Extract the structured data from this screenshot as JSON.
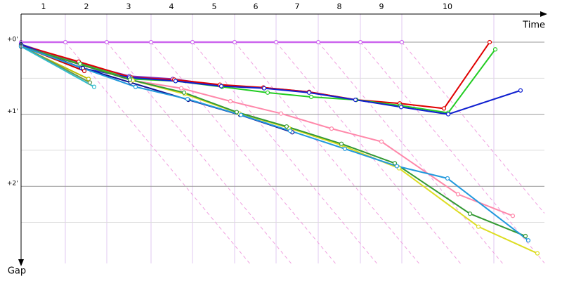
{
  "chart_data": {
    "type": "line",
    "x_label": "Time",
    "y_label": "Gap",
    "xlim": [
      0,
      745
    ],
    "ylim": [
      -0.39,
      3.07
    ],
    "xticks": [
      {
        "value": 32,
        "label": "1"
      },
      {
        "value": 93,
        "label": "2"
      },
      {
        "value": 153,
        "label": "3"
      },
      {
        "value": 214,
        "label": "4"
      },
      {
        "value": 275,
        "label": "5"
      },
      {
        "value": 334,
        "label": "6"
      },
      {
        "value": 393,
        "label": "7"
      },
      {
        "value": 453,
        "label": "8"
      },
      {
        "value": 513,
        "label": "9"
      },
      {
        "value": 607,
        "label": "10"
      }
    ],
    "xgrid": [
      63,
      122,
      185,
      244,
      304,
      363,
      423,
      483,
      542,
      673
    ],
    "yticks": [
      {
        "value": 0,
        "label": "+0'"
      },
      {
        "value": 1,
        "label": "+1'"
      },
      {
        "value": 2,
        "label": "+2'"
      }
    ],
    "ygrid_minor": [
      0.5,
      1.5,
      2.5
    ],
    "series": [
      {
        "color": "#cc66ee",
        "x": [
          0,
          63,
          122,
          185,
          244,
          304,
          363,
          423,
          483,
          542
        ],
        "values": [
          0,
          0,
          0,
          0,
          0,
          0,
          0,
          0,
          0,
          0
        ]
      },
      {
        "color": "#8030c0",
        "x": [
          0,
          83,
          154,
          216,
          283,
          345,
          410,
          476,
          541
        ],
        "values": [
          0.03,
          0.29,
          0.47,
          0.51,
          0.6,
          0.63,
          0.69,
          0.8,
          0.89
        ]
      },
      {
        "color": "#e00000",
        "x": [
          0,
          82,
          157,
          218,
          283,
          345,
          410,
          477,
          539,
          602,
          667
        ],
        "values": [
          0.04,
          0.27,
          0.49,
          0.52,
          0.59,
          0.63,
          0.69,
          0.8,
          0.85,
          0.92,
          0
        ]
      },
      {
        "color": "#22cc22",
        "x": [
          0,
          84,
          157,
          220,
          286,
          351,
          413,
          477,
          540,
          608,
          675
        ],
        "values": [
          0.06,
          0.3,
          0.51,
          0.54,
          0.62,
          0.7,
          0.76,
          0.8,
          0.88,
          0.98,
          0.1
        ]
      },
      {
        "color": "#1020d0",
        "x": [
          0,
          86,
          154,
          220,
          285,
          346,
          410,
          476,
          541,
          608,
          711
        ],
        "values": [
          0.03,
          0.36,
          0.49,
          0.54,
          0.61,
          0.64,
          0.7,
          0.8,
          0.9,
          1.0,
          0.67
        ]
      },
      {
        "color": "#101090",
        "x": [
          0,
          88,
          156,
          238,
          312,
          386
        ],
        "values": [
          0.05,
          0.36,
          0.56,
          0.8,
          1.01,
          1.25
        ]
      },
      {
        "color": "#cc0000",
        "x": [
          0,
          90
        ],
        "values": [
          0.05,
          0.4
        ]
      },
      {
        "color": "#bbbb00",
        "x": [
          0,
          96
        ],
        "values": [
          0.06,
          0.51
        ]
      },
      {
        "color": "#669955",
        "x": [
          0,
          98
        ],
        "values": [
          0.05,
          0.56
        ]
      },
      {
        "color": "#33bbcc",
        "x": [
          0,
          104
        ],
        "values": [
          0.06,
          0.62
        ]
      },
      {
        "color": "#ff88aa",
        "x": [
          0,
          158,
          228,
          298,
          370,
          442,
          513,
          622,
          700
        ],
        "values": [
          0.06,
          0.53,
          0.64,
          0.82,
          0.99,
          1.2,
          1.38,
          2.11,
          2.41
        ]
      },
      {
        "color": "#dddd22",
        "x": [
          0,
          159,
          233,
          311,
          381,
          456,
          538,
          651,
          735
        ],
        "values": [
          0.06,
          0.53,
          0.72,
          0.99,
          1.19,
          1.43,
          1.75,
          2.56,
          2.93
        ]
      },
      {
        "color": "#339933",
        "x": [
          0,
          155,
          232,
          307,
          378,
          456,
          532,
          639,
          718
        ],
        "values": [
          0.06,
          0.52,
          0.7,
          0.97,
          1.17,
          1.41,
          1.68,
          2.38,
          2.69
        ]
      },
      {
        "color": "#2299dd",
        "x": [
          0,
          163,
          237,
          313,
          383,
          461,
          535,
          607,
          722
        ],
        "values": [
          0.06,
          0.62,
          0.79,
          1.01,
          1.23,
          1.48,
          1.72,
          1.89,
          2.75
        ]
      }
    ]
  }
}
